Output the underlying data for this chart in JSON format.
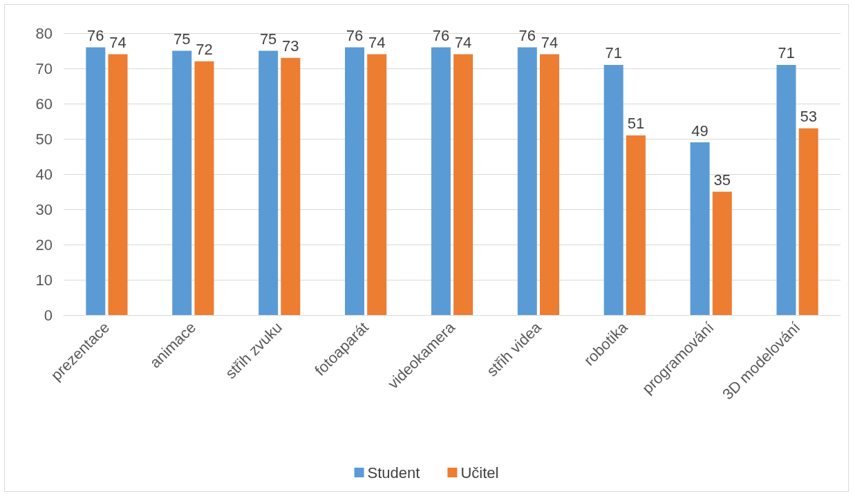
{
  "chart_data": {
    "type": "bar",
    "categories": [
      "prezentace",
      "animace",
      "střih zvuku",
      "fotoaparát",
      "videokamera",
      "střih videa",
      "robotika",
      "programování",
      "3D modelování"
    ],
    "series": [
      {
        "name": "Student",
        "color": "#5b9bd5",
        "values": [
          76,
          75,
          75,
          76,
          76,
          76,
          71,
          49,
          71
        ]
      },
      {
        "name": "Učitel",
        "color": "#ed7d31",
        "values": [
          74,
          72,
          73,
          74,
          74,
          74,
          51,
          35,
          53
        ]
      }
    ],
    "ylim": [
      0,
      80
    ],
    "yticks": [
      0,
      10,
      20,
      30,
      40,
      50,
      60,
      70,
      80
    ],
    "grid": "y",
    "legend": "bottom",
    "data_labels": true
  }
}
